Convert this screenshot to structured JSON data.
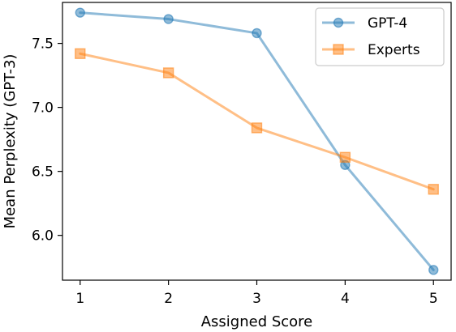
{
  "chart_data": {
    "type": "line",
    "x": [
      1,
      2,
      3,
      4,
      5
    ],
    "xlabel": "Assigned Score",
    "ylabel": "Mean Perplexity (GPT-3)",
    "xticks": [
      "1",
      "2",
      "3",
      "4",
      "5"
    ],
    "yticks": [
      "6.0",
      "6.5",
      "7.0",
      "7.5"
    ],
    "ytick_values": [
      6.0,
      6.5,
      7.0,
      7.5
    ],
    "xlim": [
      0.8,
      5.2
    ],
    "ylim": [
      5.65,
      7.82
    ],
    "grid": false,
    "legend_position": "top-right",
    "series": [
      {
        "name": "GPT-4",
        "values": [
          7.74,
          7.69,
          7.58,
          6.55,
          5.73
        ],
        "color": "#1f77b4",
        "marker": "circle"
      },
      {
        "name": "Experts",
        "values": [
          7.42,
          7.27,
          6.84,
          6.61,
          6.36
        ],
        "color": "#ff7f0e",
        "marker": "square"
      }
    ]
  }
}
